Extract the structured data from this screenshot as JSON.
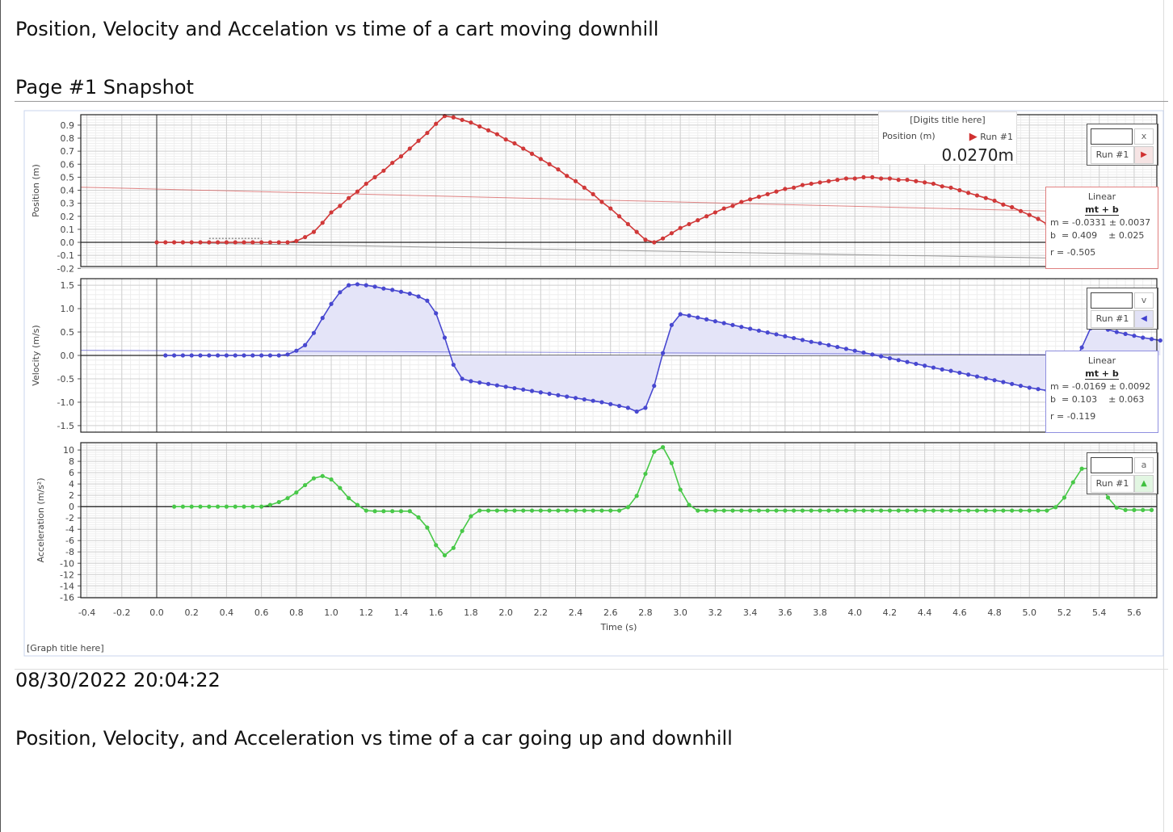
{
  "page": {
    "heading": "Position, Velocity and Accelation vs time of a cart moving downhill",
    "snapshot_label": "Page #1 Snapshot",
    "timestamp": "08/30/2022 20:04:22",
    "caption": "Position, Velocity, and Acceleration vs time of a car going up and downhill"
  },
  "digits": {
    "title": "[Digits title here]",
    "label": "Position (m)",
    "run": "Run #1",
    "value": "0.0270m",
    "marker_color": "#d03030"
  },
  "graph_title": "[Graph title here]",
  "selectors": [
    {
      "key": "x",
      "run": "Run #1",
      "marker": "▶",
      "color": "#d03030",
      "bg": "#f6e4e4"
    },
    {
      "key": "v",
      "run": "Run #1",
      "marker": "◀",
      "color": "#4040d0",
      "bg": "#e2e2f6"
    },
    {
      "key": "a",
      "run": "Run #1",
      "marker": "▲",
      "color": "#40c040",
      "bg": "#e2f6e2"
    }
  ],
  "fits": [
    {
      "title": "Linear",
      "formula": "mt + b",
      "m": "m = -0.0331 ± 0.0037",
      "b": "b  = 0.409    ± 0.025",
      "r": "r = -0.505",
      "border": "#e08080"
    },
    {
      "title": "Linear",
      "formula": "mt + b",
      "m": "m = -0.0169 ± 0.0092",
      "b": "b  = 0.103    ± 0.063",
      "r": "r = -0.119",
      "border": "#9090e0"
    }
  ],
  "chart_data": {
    "type": "line",
    "xlabel": "Time (s)",
    "xlim": [
      -0.435,
      5.73
    ],
    "xticks": [
      "-0.4",
      "-0.2",
      "0.0",
      "0.2",
      "0.4",
      "0.6",
      "0.8",
      "1.0",
      "1.2",
      "1.4",
      "1.6",
      "1.8",
      "2.0",
      "2.2",
      "2.4",
      "2.6",
      "2.8",
      "3.0",
      "3.2",
      "3.4",
      "3.6",
      "3.8",
      "4.0",
      "4.2",
      "4.4",
      "4.6",
      "4.8",
      "5.0",
      "5.2",
      "5.4",
      "5.6"
    ],
    "grid": true,
    "panels": [
      {
        "name": "Position",
        "ylabel": "Position (m)",
        "ylim": [
          -0.186,
          0.98
        ],
        "yticks": [
          "-0.2",
          "-0.1",
          "0.0",
          "0.1",
          "0.2",
          "0.3",
          "0.4",
          "0.5",
          "0.6",
          "0.7",
          "0.8",
          "0.9"
        ],
        "color": "#d03838",
        "fill": false,
        "fit": {
          "m": -0.0331,
          "b": 0.409
        },
        "t_start": 0.0,
        "t_step": 0.05,
        "values": [
          0,
          0,
          0,
          0,
          0,
          0,
          0,
          0,
          0,
          0,
          0,
          0,
          0,
          0,
          0,
          0,
          0.01,
          0.04,
          0.08,
          0.15,
          0.23,
          0.28,
          0.34,
          0.39,
          0.45,
          0.5,
          0.55,
          0.61,
          0.66,
          0.72,
          0.78,
          0.84,
          0.91,
          0.97,
          0.96,
          0.94,
          0.92,
          0.89,
          0.86,
          0.83,
          0.79,
          0.76,
          0.72,
          0.68,
          0.64,
          0.6,
          0.56,
          0.51,
          0.47,
          0.42,
          0.37,
          0.31,
          0.26,
          0.2,
          0.14,
          0.08,
          0.02,
          0.0,
          0.03,
          0.07,
          0.11,
          0.14,
          0.17,
          0.2,
          0.23,
          0.26,
          0.28,
          0.31,
          0.33,
          0.35,
          0.37,
          0.39,
          0.41,
          0.42,
          0.44,
          0.45,
          0.46,
          0.47,
          0.48,
          0.49,
          0.49,
          0.5,
          0.5,
          0.49,
          0.49,
          0.48,
          0.48,
          0.47,
          0.46,
          0.45,
          0.43,
          0.42,
          0.4,
          0.38,
          0.36,
          0.34,
          0.32,
          0.29,
          0.27,
          0.24,
          0.21,
          0.18,
          0.14
        ]
      },
      {
        "name": "Velocity",
        "ylabel": "Velocity (m/s)",
        "ylim": [
          -1.64,
          1.64
        ],
        "yticks": [
          "-1.5",
          "-1.0",
          "-0.5",
          "0.0",
          "0.5",
          "1.0",
          "1.5"
        ],
        "color": "#4848d0",
        "fill": true,
        "fill_color": "#e4e4f8",
        "fit": {
          "m": -0.0169,
          "b": 0.103
        },
        "t_start": 0.05,
        "t_step": 0.05,
        "values": [
          0,
          0,
          0,
          0,
          0,
          0,
          0,
          0,
          0,
          0,
          0,
          0,
          0,
          0,
          0.02,
          0.1,
          0.22,
          0.48,
          0.8,
          1.1,
          1.35,
          1.5,
          1.52,
          1.5,
          1.47,
          1.43,
          1.4,
          1.36,
          1.32,
          1.26,
          1.17,
          0.9,
          0.38,
          -0.2,
          -0.5,
          -0.55,
          -0.58,
          -0.61,
          -0.64,
          -0.67,
          -0.7,
          -0.73,
          -0.76,
          -0.79,
          -0.82,
          -0.85,
          -0.88,
          -0.91,
          -0.94,
          -0.97,
          -1.0,
          -1.04,
          -1.08,
          -1.12,
          -1.2,
          -1.12,
          -0.65,
          0.05,
          0.65,
          0.88,
          0.85,
          0.81,
          0.77,
          0.73,
          0.69,
          0.65,
          0.61,
          0.57,
          0.53,
          0.49,
          0.45,
          0.41,
          0.37,
          0.33,
          0.29,
          0.26,
          0.22,
          0.18,
          0.14,
          0.1,
          0.06,
          0.02,
          -0.02,
          -0.06,
          -0.1,
          -0.14,
          -0.18,
          -0.22,
          -0.26,
          -0.3,
          -0.33,
          -0.37,
          -0.41,
          -0.45,
          -0.49,
          -0.53,
          -0.57,
          -0.61,
          -0.65,
          -0.69,
          -0.72,
          -0.75,
          -0.78,
          -0.6,
          -0.2,
          0.17,
          0.58,
          0.6,
          0.55,
          0.5,
          0.46,
          0.42,
          0.38,
          0.35,
          0.32
        ]
      },
      {
        "name": "Acceleration",
        "ylabel": "Acceleration (m/s²)",
        "ylim": [
          -16.1,
          11.3
        ],
        "yticks": [
          "-16",
          "-14",
          "-12",
          "-10",
          "-8",
          "-6",
          "-4",
          "-2",
          "0",
          "2",
          "4",
          "6",
          "8",
          "10"
        ],
        "color": "#48c848",
        "fill": false,
        "t_start": 0.1,
        "t_step": 0.05,
        "values": [
          0,
          0,
          0,
          0,
          0,
          0,
          0,
          0,
          0,
          0,
          0,
          0.3,
          0.8,
          1.5,
          2.5,
          3.8,
          5.0,
          5.4,
          4.8,
          3.3,
          1.5,
          0.3,
          -0.7,
          -0.8,
          -0.8,
          -0.8,
          -0.8,
          -0.8,
          -1.9,
          -3.7,
          -6.8,
          -8.6,
          -7.3,
          -4.3,
          -1.7,
          -0.7,
          -0.7,
          -0.7,
          -0.7,
          -0.7,
          -0.7,
          -0.7,
          -0.7,
          -0.7,
          -0.7,
          -0.7,
          -0.7,
          -0.7,
          -0.7,
          -0.7,
          -0.7,
          -0.7,
          -0.1,
          1.9,
          5.8,
          9.7,
          10.5,
          7.7,
          3.0,
          0.3,
          -0.7,
          -0.7,
          -0.7,
          -0.7,
          -0.7,
          -0.7,
          -0.7,
          -0.7,
          -0.7,
          -0.7,
          -0.7,
          -0.7,
          -0.7,
          -0.7,
          -0.7,
          -0.7,
          -0.7,
          -0.7,
          -0.7,
          -0.7,
          -0.7,
          -0.7,
          -0.7,
          -0.7,
          -0.7,
          -0.7,
          -0.7,
          -0.7,
          -0.7,
          -0.7,
          -0.7,
          -0.7,
          -0.7,
          -0.7,
          -0.7,
          -0.7,
          -0.7,
          -0.7,
          -0.7,
          -0.7,
          -0.7,
          -0.1,
          1.6,
          4.3,
          6.7,
          6.8,
          4.4,
          1.6,
          -0.2,
          -0.6,
          -0.6,
          -0.6,
          -0.6
        ]
      }
    ]
  }
}
